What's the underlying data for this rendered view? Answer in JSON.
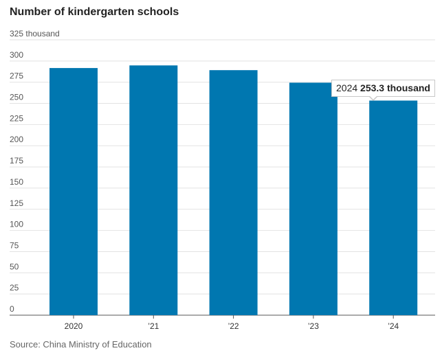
{
  "chart_data": {
    "type": "bar",
    "title": "Number of kindergarten schools",
    "ylabel": "thousand",
    "categories": [
      "2020",
      "’21",
      "’22",
      "’23",
      "’24"
    ],
    "values": [
      291.7,
      294.8,
      289.2,
      274.4,
      253.3
    ],
    "ylim": [
      0,
      325
    ],
    "yticks": [
      0,
      25,
      50,
      75,
      100,
      125,
      150,
      175,
      200,
      225,
      250,
      275,
      300,
      325
    ],
    "ytick_labels": [
      "0",
      "25",
      "50",
      "75",
      "100",
      "125",
      "150",
      "175",
      "200",
      "225",
      "250",
      "275",
      "300",
      "325 thousand"
    ],
    "grid": true,
    "bar_color": "#0077b0",
    "tooltip": {
      "year": "2024",
      "value": "253.3 thousand"
    },
    "source": "Source: China Ministry of Education"
  }
}
